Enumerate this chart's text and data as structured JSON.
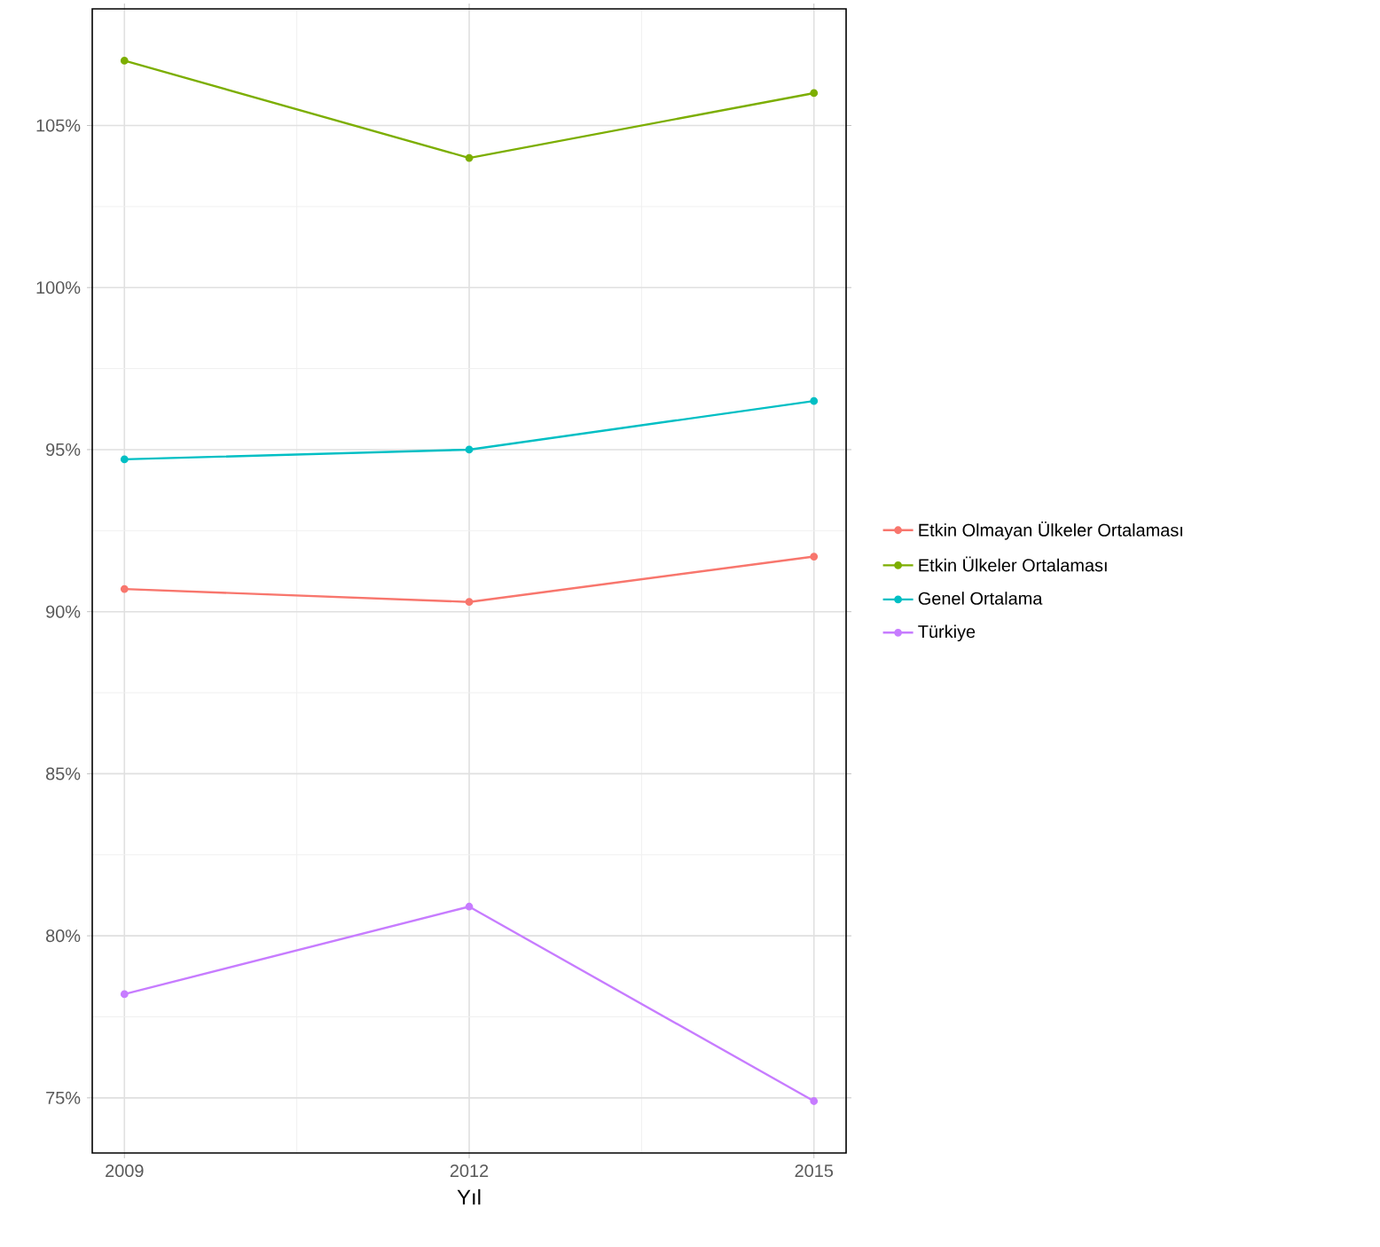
{
  "chart_data": {
    "type": "line",
    "xlabel": "Yıl",
    "x": [
      2009,
      2012,
      2015
    ],
    "series": [
      {
        "name": "Etkin Olmayan Ülkeler Ortalaması",
        "color": "#f8766d",
        "values": [
          90.7,
          90.3,
          91.7
        ]
      },
      {
        "name": "Etkin Ülkeler  Ortalaması",
        "color": "#7cae00",
        "values": [
          107.0,
          104.0,
          106.0
        ]
      },
      {
        "name": "Genel Ortalama",
        "color": "#00bfc4",
        "values": [
          94.7,
          95.0,
          96.5
        ]
      },
      {
        "name": "Türkiye",
        "color": "#c77cff",
        "values": [
          78.2,
          80.9,
          74.9
        ]
      }
    ],
    "xlim": [
      2008.72,
      2015.28
    ],
    "xticks": [
      2009,
      2012,
      2015
    ],
    "ylim": [
      73.3,
      108.6
    ],
    "yticks": [
      {
        "value": 75,
        "label": "75%"
      },
      {
        "value": 80,
        "label": "80%"
      },
      {
        "value": 85,
        "label": "85%"
      },
      {
        "value": 90,
        "label": "90%"
      },
      {
        "value": 95,
        "label": "95%"
      },
      {
        "value": 100,
        "label": "100%"
      },
      {
        "value": 105,
        "label": "105%"
      }
    ],
    "grid": true,
    "legend": "right",
    "marker": "circle",
    "line_style": "solid"
  }
}
